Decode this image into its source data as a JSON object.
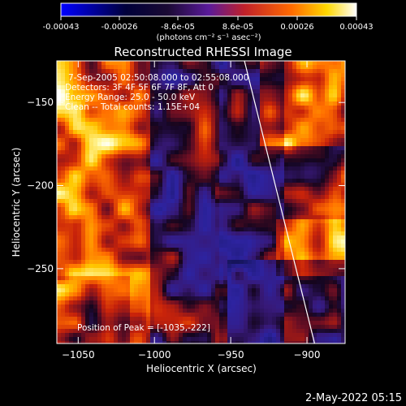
{
  "colorbar": {
    "ticks": [
      "-0.00043",
      "-0.00026",
      "-8.6e-05",
      "8.6e-05",
      "0.00026",
      "0.00043"
    ],
    "unit_label": "(photons cm⁻² s⁻¹ asec⁻²)",
    "colors": [
      "#0000ff",
      "#000000",
      "#5a1a9a",
      "#c0202a",
      "#ff6a00",
      "#ffd800",
      "#ffffff"
    ]
  },
  "chart_data": {
    "type": "heatmap",
    "title": "Reconstructed RHESSI Image",
    "xlabel": "Heliocentric X (arcsec)",
    "ylabel": "Heliocentric Y (arcsec)",
    "xlim": [
      -1064,
      -875
    ],
    "ylim": [
      -295,
      -125
    ],
    "x_ticks": [
      -1050,
      -1000,
      -950,
      -900
    ],
    "y_ticks": [
      -150,
      -200,
      -250
    ],
    "x_tick_labels": [
      "−1050",
      "−1000",
      "−950",
      "−900"
    ],
    "y_tick_labels": [
      "−150",
      "−200",
      "−250"
    ],
    "limb_line": {
      "x": [
        -941,
        -895
      ],
      "y": [
        -125,
        -295
      ]
    },
    "info_lines": [
      "7-Sep-2005 02:50:08.000 to 02:55:08.000",
      "Detectors: 3F 4F 5F 6F 7F 8F, Att 0",
      "Energy Range: 25.0 - 50.0 keV",
      "Clean -- Total counts: 1.15E+04"
    ],
    "peak_label": "Position of Peak = [-1035,-222]",
    "peak": {
      "x": -1035,
      "y": -222
    }
  },
  "footer": {
    "timestamp": "2-May-2022 05:15"
  }
}
